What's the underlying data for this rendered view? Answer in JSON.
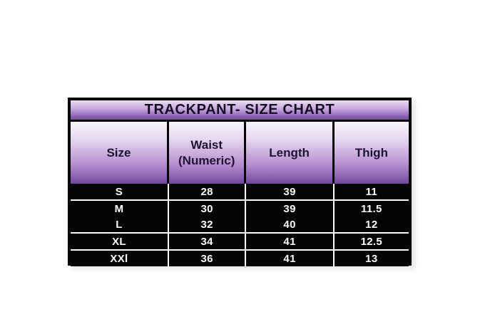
{
  "page": {
    "background": "#ffffff"
  },
  "colors": {
    "border": "#050505",
    "header_gradient_top": "#f8f4fb",
    "header_gradient_bottom": "#7a4fa2",
    "title_gradient_top": "#e9ddf3",
    "title_gradient_bottom": "#7a4fa2",
    "header_text": "#1d1330",
    "row_background": "#050505",
    "row_text": "#ffffff"
  },
  "chart_data": {
    "type": "table",
    "title": "TRACKPANT- SIZE CHART",
    "columns": [
      "Size",
      "Waist (Numeric)",
      "Length",
      "Thigh"
    ],
    "rows": [
      [
        "S",
        "28",
        "39",
        "11"
      ],
      [
        "M",
        "30",
        "39",
        "11.5"
      ],
      [
        "L",
        "32",
        "40",
        "12"
      ],
      [
        "XL",
        "34",
        "41",
        "12.5"
      ],
      [
        "XXl",
        "36",
        "41",
        "13"
      ]
    ]
  }
}
